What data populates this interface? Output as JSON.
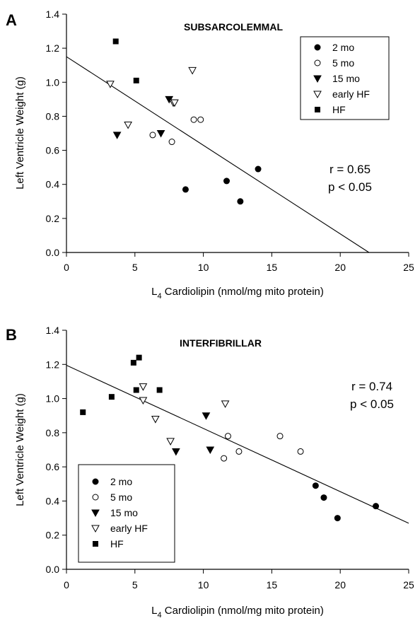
{
  "chart_data": [
    {
      "type": "scatter",
      "panel_label": "A",
      "title": "SUBSARCOLEMMAL",
      "xlabel_sub": "4",
      "xlabel_main_prefix": "L",
      "xlabel_main_suffix": " Cardiolipin (nmol/mg mito protein)",
      "ylabel": "Left Ventricle Weight (g)",
      "xlim": [
        0,
        25
      ],
      "ylim": [
        0,
        1.4
      ],
      "xticks": [
        "0",
        "5",
        "10",
        "15",
        "20",
        "25"
      ],
      "yticks": [
        "0.0",
        "0.2",
        "0.4",
        "0.6",
        "0.8",
        "1.0",
        "1.2",
        "1.4"
      ],
      "legend_position": "top-right",
      "stats": [
        "r = 0.65",
        "p < 0.05"
      ],
      "regression": {
        "x": [
          0,
          22.1
        ],
        "y": [
          1.15,
          0.0
        ]
      },
      "series": [
        {
          "name": "2 mo",
          "marker": "circle-filled",
          "points": [
            [
              8.7,
              0.37
            ],
            [
              11.7,
              0.42
            ],
            [
              12.7,
              0.3
            ],
            [
              14.0,
              0.49
            ]
          ]
        },
        {
          "name": "5 mo",
          "marker": "circle-open",
          "points": [
            [
              6.3,
              0.69
            ],
            [
              7.7,
              0.65
            ],
            [
              9.3,
              0.78
            ],
            [
              9.8,
              0.78
            ]
          ]
        },
        {
          "name": "15 mo",
          "marker": "triangle-down-filled",
          "points": [
            [
              3.7,
              0.69
            ],
            [
              6.9,
              0.7
            ],
            [
              7.5,
              0.9
            ]
          ]
        },
        {
          "name": "early HF",
          "marker": "triangle-down-open",
          "points": [
            [
              3.2,
              0.99
            ],
            [
              4.5,
              0.75
            ],
            [
              7.8,
              0.88
            ],
            [
              7.9,
              0.88
            ],
            [
              9.2,
              1.07
            ]
          ]
        },
        {
          "name": "HF",
          "marker": "square-filled",
          "points": [
            [
              3.6,
              1.24
            ],
            [
              5.1,
              1.01
            ]
          ]
        }
      ]
    },
    {
      "type": "scatter",
      "panel_label": "B",
      "title": "INTERFIBRILLAR",
      "xlabel_sub": "4",
      "xlabel_main_prefix": "L",
      "xlabel_main_suffix": " Cardiolipin (nmol/mg mito protein)",
      "ylabel": "Left Ventricle Weight (g)",
      "xlim": [
        0,
        25
      ],
      "ylim": [
        0,
        1.4
      ],
      "xticks": [
        "0",
        "5",
        "10",
        "15",
        "20",
        "25"
      ],
      "yticks": [
        "0.0",
        "0.2",
        "0.4",
        "0.6",
        "0.8",
        "1.0",
        "1.2",
        "1.4"
      ],
      "legend_position": "bottom-left",
      "stats": [
        "r = 0.74",
        "p < 0.05"
      ],
      "regression": {
        "x": [
          0,
          25
        ],
        "y": [
          1.195,
          0.27
        ]
      },
      "series": [
        {
          "name": "2 mo",
          "marker": "circle-filled",
          "points": [
            [
              18.2,
              0.49
            ],
            [
              18.8,
              0.42
            ],
            [
              19.8,
              0.3
            ],
            [
              22.6,
              0.37
            ]
          ]
        },
        {
          "name": "5 mo",
          "marker": "circle-open",
          "points": [
            [
              11.5,
              0.65
            ],
            [
              11.8,
              0.78
            ],
            [
              12.6,
              0.69
            ],
            [
              15.6,
              0.78
            ],
            [
              17.1,
              0.69
            ]
          ]
        },
        {
          "name": "15 mo",
          "marker": "triangle-down-filled",
          "points": [
            [
              8.0,
              0.69
            ],
            [
              10.2,
              0.9
            ],
            [
              10.5,
              0.7
            ]
          ]
        },
        {
          "name": "early HF",
          "marker": "triangle-down-open",
          "points": [
            [
              5.6,
              1.07
            ],
            [
              5.6,
              0.99
            ],
            [
              6.5,
              0.88
            ],
            [
              7.6,
              0.75
            ],
            [
              11.6,
              0.97
            ]
          ]
        },
        {
          "name": "HF",
          "marker": "square-filled",
          "points": [
            [
              1.2,
              0.92
            ],
            [
              3.3,
              1.01
            ],
            [
              4.9,
              1.21
            ],
            [
              5.3,
              1.24
            ],
            [
              5.1,
              1.05
            ],
            [
              6.8,
              1.05
            ]
          ]
        }
      ]
    }
  ]
}
